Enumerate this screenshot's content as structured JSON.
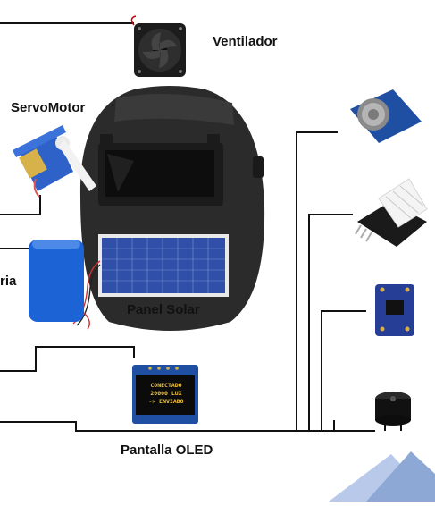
{
  "labels": {
    "ventilador": "Ventilador",
    "servomotor": "ServoMotor",
    "bateria": "ria",
    "panel_solar": "Panel Solar",
    "pantalla_oled": "Pantalla OLED"
  },
  "oled_screen": {
    "line1": "CONECTADO",
    "line2": "20000 LUX",
    "line3": "-> ENVIADO"
  },
  "colors": {
    "wire": "#111111",
    "helmet": "#2b2b2b",
    "solar_cell": "#2f4fa8",
    "sensor_board": "#1f4fa3",
    "dht_board": "#1a1a1a",
    "servo_blue": "#2f62c9",
    "battery_blue": "#1c63d6",
    "oled_text": "#f3c53f",
    "corner_accent": "#8ea8d6"
  }
}
